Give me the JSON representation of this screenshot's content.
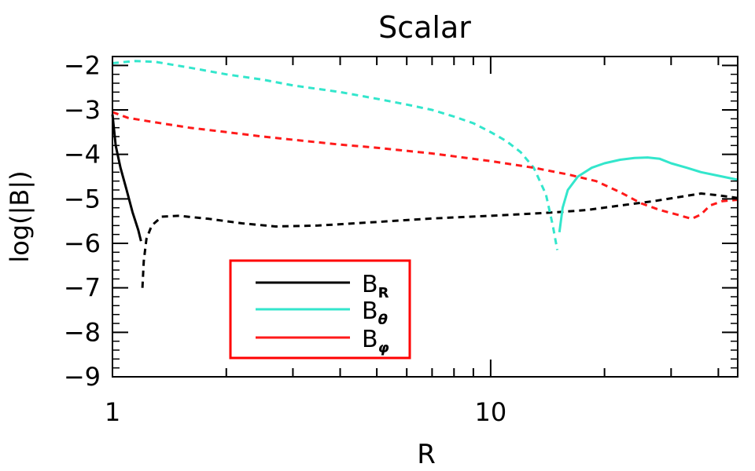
{
  "chart_data": {
    "type": "line",
    "title": "Scalar",
    "xlabel": "R",
    "ylabel": "log(|B|)",
    "xscale": "log",
    "xlim": [
      1,
      45
    ],
    "ylim": [
      -9,
      -1.8
    ],
    "x_ticks": [
      1,
      10
    ],
    "x_tick_labels": [
      "1",
      "10"
    ],
    "y_ticks": [
      -2,
      -3,
      -4,
      -5,
      -6,
      -7,
      -8,
      -9
    ],
    "y_tick_labels": [
      "−2",
      "−3",
      "−4",
      "−5",
      "−6",
      "−7",
      "−8",
      "−9"
    ],
    "grid": false,
    "legend_placement": "lower-left",
    "legend_border_color": "#ff0000",
    "series": [
      {
        "name": "B",
        "sub": "R",
        "color": "#000000",
        "segments": [
          {
            "style": "solid",
            "points": [
              [
                1.0,
                -3.1
              ],
              [
                1.02,
                -3.8
              ],
              [
                1.05,
                -4.3
              ],
              [
                1.09,
                -4.8
              ],
              [
                1.13,
                -5.3
              ],
              [
                1.17,
                -5.7
              ],
              [
                1.19,
                -5.95
              ]
            ]
          },
          {
            "style": "dashed",
            "points": [
              [
                1.2,
                -7.0
              ],
              [
                1.21,
                -6.4
              ],
              [
                1.23,
                -5.9
              ],
              [
                1.27,
                -5.6
              ],
              [
                1.35,
                -5.4
              ],
              [
                1.5,
                -5.38
              ],
              [
                1.8,
                -5.45
              ],
              [
                2.2,
                -5.55
              ],
              [
                2.7,
                -5.62
              ],
              [
                3.5,
                -5.6
              ],
              [
                5,
                -5.52
              ],
              [
                7,
                -5.44
              ],
              [
                10,
                -5.38
              ],
              [
                13,
                -5.33
              ],
              [
                15,
                -5.3
              ],
              [
                18,
                -5.25
              ],
              [
                22,
                -5.15
              ],
              [
                27,
                -5.05
              ],
              [
                32,
                -4.95
              ],
              [
                36,
                -4.88
              ],
              [
                40,
                -4.92
              ],
              [
                45,
                -4.98
              ]
            ]
          }
        ]
      },
      {
        "name": "B",
        "sub": "θ",
        "color": "#33e6cc",
        "segments": [
          {
            "style": "dashed",
            "points": [
              [
                1.0,
                -1.95
              ],
              [
                1.15,
                -1.9
              ],
              [
                1.3,
                -1.92
              ],
              [
                1.6,
                -2.05
              ],
              [
                2,
                -2.2
              ],
              [
                2.5,
                -2.32
              ],
              [
                3,
                -2.45
              ],
              [
                4,
                -2.6
              ],
              [
                5,
                -2.75
              ],
              [
                6,
                -2.88
              ],
              [
                7,
                -3.0
              ],
              [
                8,
                -3.15
              ],
              [
                9,
                -3.3
              ],
              [
                10,
                -3.5
              ],
              [
                11,
                -3.7
              ],
              [
                12,
                -3.95
              ],
              [
                13,
                -4.3
              ],
              [
                14,
                -4.9
              ],
              [
                14.6,
                -5.6
              ],
              [
                15,
                -6.15
              ]
            ]
          },
          {
            "style": "solid",
            "points": [
              [
                15.2,
                -5.75
              ],
              [
                15.5,
                -5.2
              ],
              [
                16,
                -4.8
              ],
              [
                17,
                -4.5
              ],
              [
                18.5,
                -4.3
              ],
              [
                20,
                -4.2
              ],
              [
                22,
                -4.12
              ],
              [
                24,
                -4.08
              ],
              [
                26,
                -4.07
              ],
              [
                28,
                -4.1
              ],
              [
                30,
                -4.2
              ],
              [
                33,
                -4.3
              ],
              [
                36,
                -4.4
              ],
              [
                40,
                -4.48
              ],
              [
                45,
                -4.57
              ]
            ]
          }
        ]
      },
      {
        "name": "B",
        "sub": "φ",
        "color": "#ff1a1a",
        "segments": [
          {
            "style": "dashed",
            "points": [
              [
                1.0,
                -3.05
              ],
              [
                1.1,
                -3.18
              ],
              [
                1.3,
                -3.28
              ],
              [
                1.6,
                -3.4
              ],
              [
                2,
                -3.5
              ],
              [
                2.5,
                -3.6
              ],
              [
                3,
                -3.67
              ],
              [
                4,
                -3.78
              ],
              [
                5,
                -3.85
              ],
              [
                7,
                -3.98
              ],
              [
                10,
                -4.15
              ],
              [
                13,
                -4.3
              ],
              [
                16,
                -4.45
              ],
              [
                19,
                -4.6
              ],
              [
                22,
                -4.85
              ],
              [
                25,
                -5.1
              ],
              [
                28,
                -5.25
              ],
              [
                31,
                -5.35
              ],
              [
                34,
                -5.45
              ],
              [
                36,
                -5.35
              ],
              [
                38,
                -5.15
              ],
              [
                41,
                -5.05
              ],
              [
                45,
                -5.02
              ]
            ]
          }
        ]
      }
    ]
  }
}
